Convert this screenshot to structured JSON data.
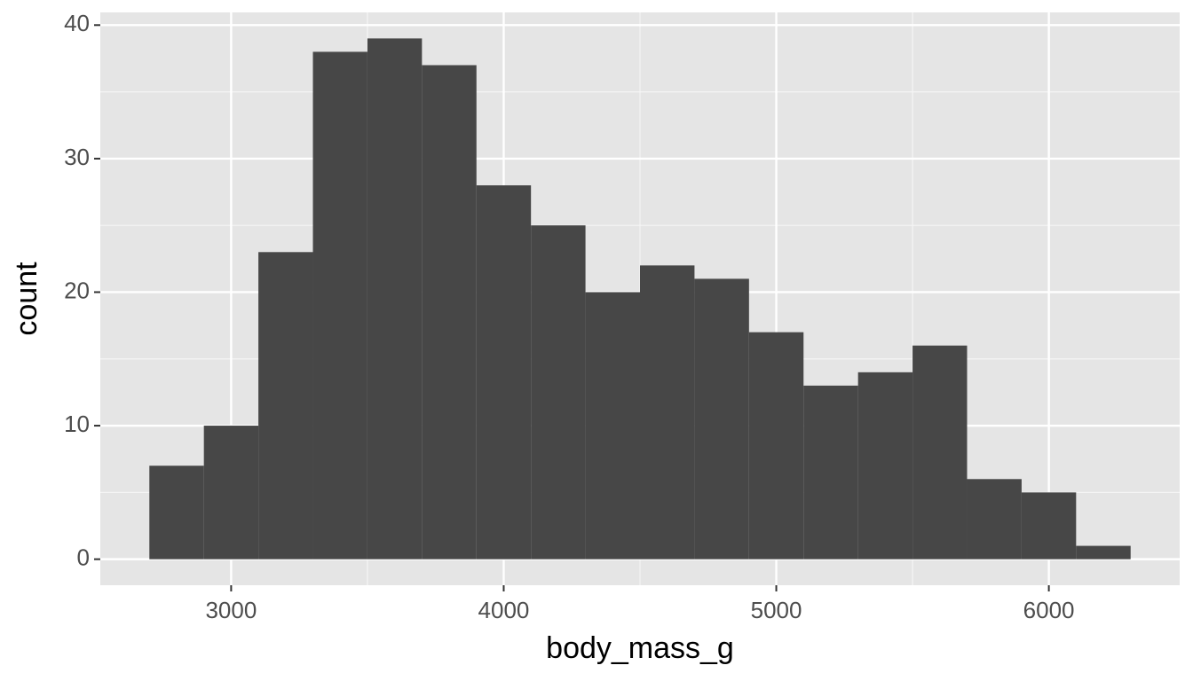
{
  "chart_data": {
    "type": "histogram",
    "x_label": "body_mass_g",
    "y_label": "count",
    "bins": [
      2700,
      2900,
      3100,
      3300,
      3500,
      3700,
      3900,
      4100,
      4300,
      4500,
      4700,
      4900,
      5100,
      5300,
      5500,
      5700,
      5900,
      6100,
      6300
    ],
    "values": [
      7,
      10,
      23,
      38,
      39,
      37,
      28,
      25,
      20,
      22,
      21,
      17,
      13,
      14,
      16,
      6,
      5,
      1
    ],
    "color": "#474747",
    "xlim": [
      2520,
      6480
    ],
    "ylim": [
      -1.95,
      40.95
    ],
    "xticks": [
      3000,
      4000,
      5000,
      6000
    ],
    "yticks": [
      0,
      10,
      20,
      30,
      40
    ],
    "grid": true
  }
}
